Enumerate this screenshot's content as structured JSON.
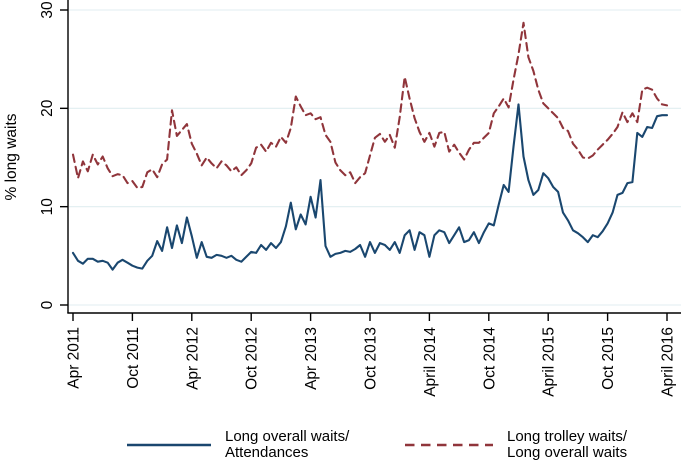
{
  "figure": {
    "background": "#ffffff",
    "axis_color": "#000000"
  },
  "legend": {
    "entries": [
      {
        "id": "overall",
        "line1": "Long overall waits/",
        "line2": "Attendances",
        "color": "#1a476f",
        "dash": "solid"
      },
      {
        "id": "trolley",
        "line1": "Long trolley waits/",
        "line2": "Long overall waits",
        "color": "#90353b",
        "dash": "dashed"
      }
    ]
  },
  "chart_data": {
    "type": "line",
    "title": "",
    "xlabel": "",
    "ylabel": "% long waits",
    "ylim": [
      0,
      30
    ],
    "grid": true,
    "grid_color": "#e1eef0",
    "legend_position": "bottom",
    "x_start": "Apr 2011",
    "x_end": "April 2016",
    "points_per_month": 2,
    "x_tick_labels": [
      "Apr 2011",
      "Oct 2011",
      "Apr 2012",
      "Oct 2012",
      "Apr 2013",
      "Oct 2013",
      "April 2014",
      "Oct 2014",
      "April 2015",
      "Oct 2015",
      "April 2016"
    ],
    "y_ticks": [
      0,
      10,
      20,
      30
    ],
    "y_tick_labels": [
      "0",
      "10",
      "20",
      "30"
    ],
    "series": [
      {
        "id": "overall",
        "name": "Long overall waits/Attendances",
        "color": "#1a476f",
        "dash": "solid",
        "values": [
          5.3,
          4.5,
          4.2,
          4.7,
          4.7,
          4.4,
          4.5,
          4.3,
          3.6,
          4.3,
          4.6,
          4.3,
          4.0,
          3.8,
          3.7,
          4.5,
          5.0,
          6.5,
          5.5,
          7.9,
          5.8,
          8.1,
          6.3,
          8.9,
          7.0,
          4.8,
          6.4,
          4.9,
          4.8,
          5.1,
          5.0,
          4.8,
          5.0,
          4.6,
          4.4,
          4.9,
          5.4,
          5.3,
          6.1,
          5.6,
          6.3,
          5.8,
          6.4,
          8.0,
          10.4,
          7.7,
          9.2,
          8.2,
          11.0,
          8.9,
          12.7,
          6.0,
          4.9,
          5.2,
          5.3,
          5.5,
          5.4,
          5.7,
          6.1,
          4.9,
          6.4,
          5.3,
          6.3,
          6.1,
          5.6,
          6.4,
          5.3,
          7.1,
          7.6,
          5.6,
          7.4,
          7.1,
          4.9,
          7.1,
          7.6,
          7.4,
          6.3,
          7.1,
          7.9,
          6.4,
          6.6,
          7.4,
          6.3,
          7.4,
          8.3,
          8.1,
          10.2,
          12.2,
          11.5,
          16.1,
          20.4,
          15.1,
          12.7,
          11.2,
          11.7,
          13.4,
          12.9,
          12.0,
          11.5,
          9.4,
          8.6,
          7.6,
          7.3,
          6.9,
          6.4,
          7.1,
          6.9,
          7.5,
          8.3,
          9.4,
          11.2,
          11.4,
          12.4,
          12.5,
          17.5,
          17.1,
          18.1,
          18.0,
          19.2,
          19.3,
          19.3
        ]
      },
      {
        "id": "trolley",
        "name": "Long trolley waits/Long overall waits",
        "color": "#90353b",
        "dash": "dashed",
        "values": [
          15.3,
          12.9,
          14.6,
          13.6,
          15.3,
          14.3,
          15.1,
          13.9,
          13.1,
          13.3,
          13.2,
          12.4,
          12.6,
          11.9,
          12.0,
          13.5,
          13.8,
          13.0,
          14.3,
          14.8,
          19.8,
          17.2,
          17.8,
          18.4,
          16.4,
          15.4,
          14.2,
          15.0,
          14.4,
          13.9,
          14.6,
          14.2,
          13.6,
          14.0,
          13.2,
          13.7,
          14.4,
          16.0,
          16.3,
          15.6,
          16.5,
          16.1,
          17.1,
          16.5,
          18.0,
          21.2,
          20.2,
          19.3,
          19.5,
          18.9,
          19.1,
          17.3,
          16.6,
          14.5,
          13.7,
          13.2,
          13.5,
          12.4,
          13.0,
          13.4,
          15.2,
          17.0,
          17.4,
          16.6,
          17.3,
          16.0,
          19.1,
          23.2,
          21.0,
          19.0,
          17.6,
          16.6,
          17.5,
          16.1,
          17.5,
          17.6,
          15.6,
          16.3,
          15.5,
          14.8,
          15.8,
          16.5,
          16.5,
          17.0,
          17.5,
          19.5,
          20.2,
          21.0,
          20.1,
          22.9,
          25.5,
          28.7,
          25.2,
          23.8,
          21.9,
          20.5,
          20.0,
          19.5,
          19.0,
          18.0,
          17.7,
          16.4,
          15.8,
          15.0,
          14.9,
          15.2,
          15.8,
          16.3,
          16.8,
          17.4,
          18.1,
          19.6,
          18.6,
          19.5,
          18.6,
          21.9,
          22.1,
          21.9,
          21.0,
          20.4,
          20.3
        ]
      }
    ]
  }
}
